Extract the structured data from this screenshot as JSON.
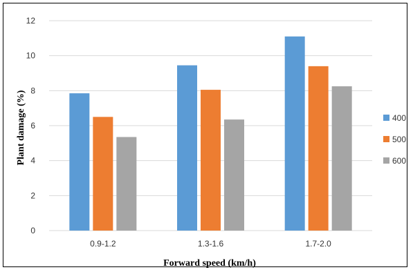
{
  "chart_data": {
    "type": "bar",
    "categories": [
      "0.9-1.2",
      "1.3-1.6",
      "1.7-2.0"
    ],
    "series": [
      {
        "name": "400",
        "color": "#5b9bd5",
        "values": [
          7.85,
          9.45,
          11.1
        ]
      },
      {
        "name": "500",
        "color": "#ed7d31",
        "values": [
          6.5,
          8.05,
          9.4
        ]
      },
      {
        "name": "600",
        "color": "#a5a5a5",
        "values": [
          5.35,
          6.35,
          8.25
        ]
      }
    ],
    "xlabel": "Forward speed (km/h)",
    "ylabel": "Plant damage (%)",
    "ylim": [
      0,
      12
    ],
    "yticks": [
      "0",
      "2",
      "4",
      "6",
      "8",
      "10",
      "12"
    ],
    "grid": true,
    "legend_position": "right"
  }
}
